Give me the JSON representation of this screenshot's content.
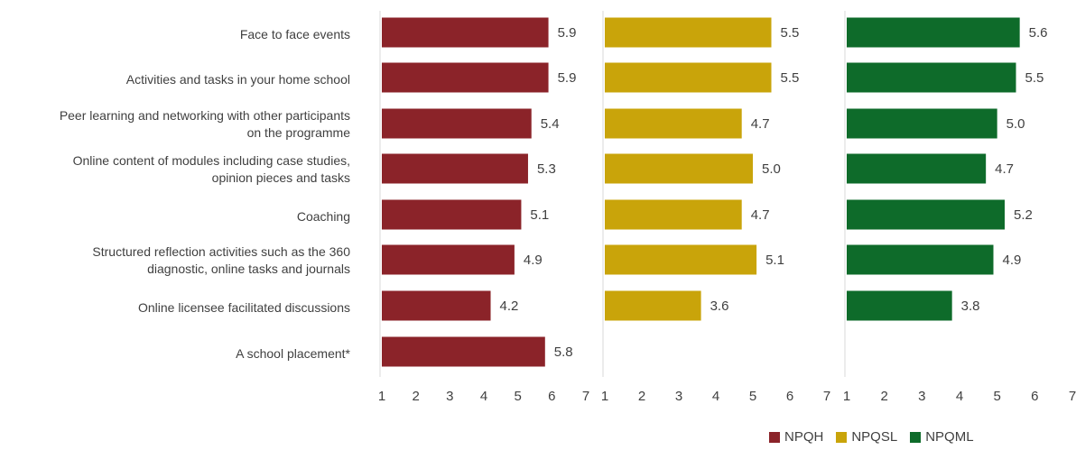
{
  "chart_data": {
    "type": "bar",
    "orientation": "horizontal",
    "categories": [
      "Face to face events",
      "Activities and tasks in your home school",
      "Peer learning and networking with other participants on the programme",
      "Online content of modules including case studies, opinion pieces and tasks",
      "Coaching",
      "Structured reflection activities such as the 360 diagnostic, online tasks and journals",
      "Online licensee facilitated discussions",
      "A school placement*"
    ],
    "category_lines": [
      [
        "Face to face events"
      ],
      [
        "Activities and tasks in your home school"
      ],
      [
        "Peer learning and networking with other participants",
        "on the programme"
      ],
      [
        "Online content of modules including case studies,",
        "opinion pieces and tasks"
      ],
      [
        "Coaching"
      ],
      [
        "Structured reflection activities such as the 360",
        "diagnostic, online tasks and journals"
      ],
      [
        "Online licensee facilitated discussions"
      ],
      [
        "A school placement*"
      ]
    ],
    "series": [
      {
        "name": "NPQH",
        "color": "#8B2329",
        "values": [
          5.9,
          5.9,
          5.4,
          5.3,
          5.1,
          4.9,
          4.2,
          5.8
        ]
      },
      {
        "name": "NPQSL",
        "color": "#C9A40A",
        "values": [
          5.5,
          5.5,
          4.7,
          5.0,
          4.7,
          5.1,
          3.6,
          null
        ]
      },
      {
        "name": "NPQML",
        "color": "#0E6B2A",
        "values": [
          5.6,
          5.5,
          5.0,
          4.7,
          5.2,
          4.9,
          3.8,
          null
        ]
      }
    ],
    "xlim": [
      1,
      7
    ],
    "xticks": [
      "1",
      "2",
      "3",
      "4",
      "5",
      "6",
      "7"
    ],
    "grid": false,
    "legend_position": "bottom-right"
  }
}
